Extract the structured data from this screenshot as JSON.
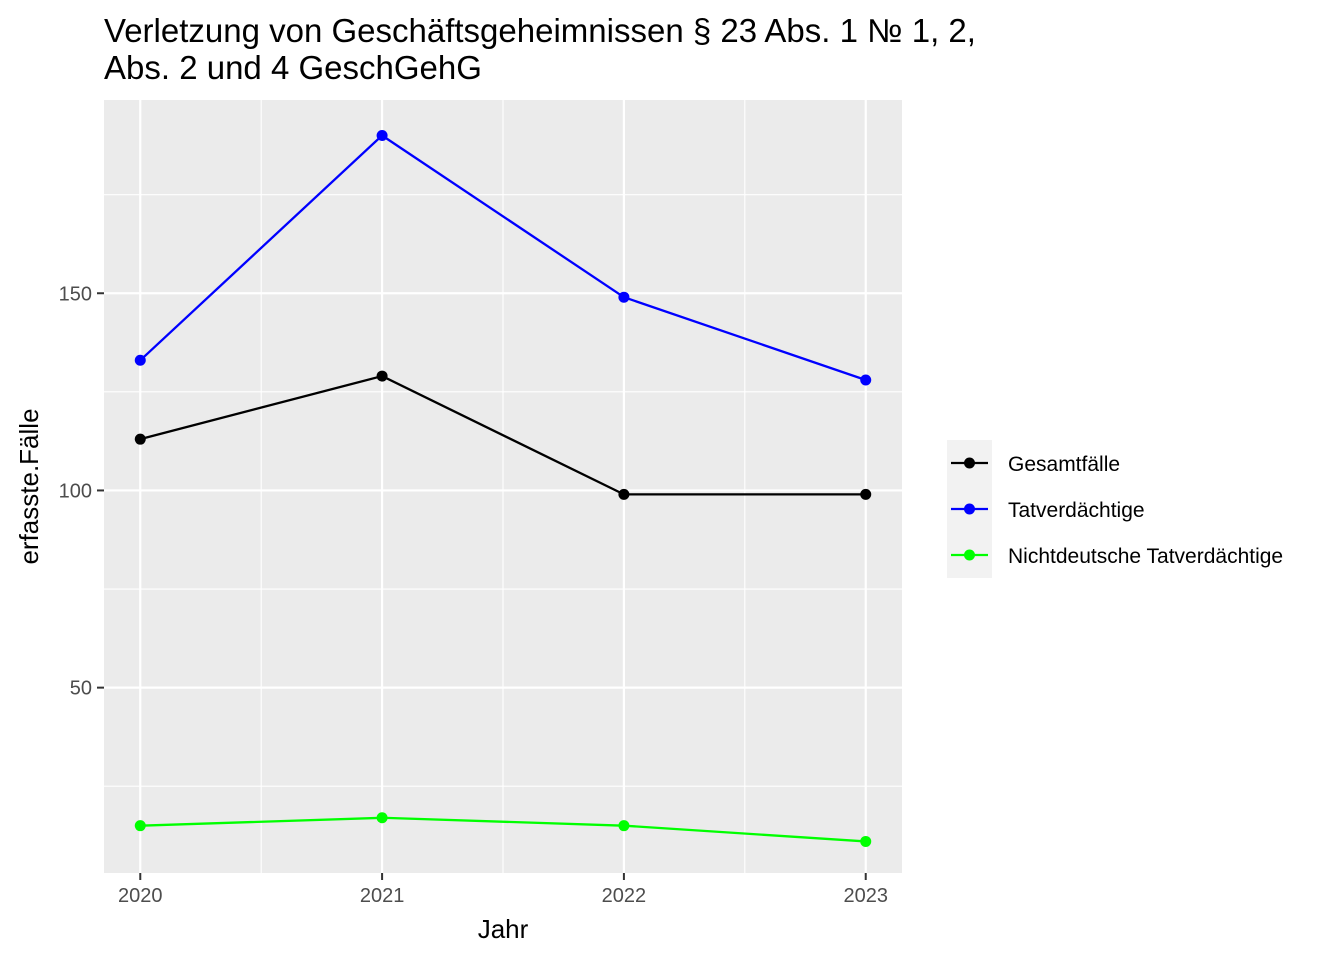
{
  "chart_data": {
    "type": "line",
    "title_lines": [
      "Verletzung von Geschäftsgeheimnissen § 23 Abs. 1 № 1, 2,",
      "Abs. 2 und 4 GeschGehG"
    ],
    "xlabel": "Jahr",
    "ylabel": "erfasste.Fälle",
    "x": [
      2020,
      2021,
      2022,
      2023
    ],
    "x_tick_labels": [
      "2020",
      "2021",
      "2022",
      "2023"
    ],
    "y_ticks": [
      50,
      100,
      150
    ],
    "y_tick_labels": [
      "50",
      "100",
      "150"
    ],
    "xlim": [
      2019.85,
      2023.15
    ],
    "ylim": [
      3,
      199
    ],
    "grid": true,
    "legend_position": "right",
    "series": [
      {
        "name": "Gesamtfälle",
        "color": "#000000",
        "values": [
          113,
          129,
          99,
          99
        ]
      },
      {
        "name": "Tatverdächtige",
        "color": "#0000ff",
        "values": [
          133,
          190,
          149,
          128
        ]
      },
      {
        "name": "Nichtdeutsche Tatverdächtige",
        "color": "#00ff00",
        "values": [
          15,
          17,
          15,
          11
        ]
      }
    ]
  }
}
